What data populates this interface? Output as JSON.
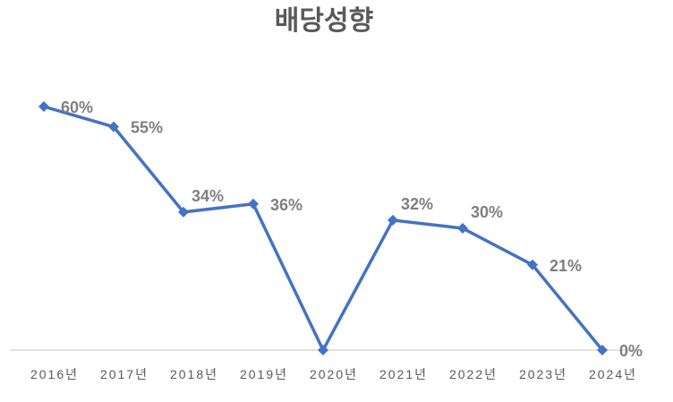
{
  "chart_data": {
    "type": "line",
    "title": "배당성향",
    "xlabel": "",
    "ylabel": "",
    "categories": [
      "2016년",
      "2017년",
      "2018년",
      "2019년",
      "2020년",
      "2021년",
      "2022년",
      "2023년",
      "2024년"
    ],
    "series": [
      {
        "name": "배당성향",
        "values": [
          60,
          55,
          34,
          36,
          0,
          32,
          30,
          21,
          0
        ],
        "color": "#4472C4"
      }
    ],
    "data_labels": [
      "60%",
      "55%",
      "34%",
      "36%",
      "0%",
      "32%",
      "30%",
      "21%",
      "0%"
    ],
    "ylim": [
      0,
      60
    ],
    "grid": false,
    "legend": "none",
    "axis_color": "#D9D9D9"
  }
}
